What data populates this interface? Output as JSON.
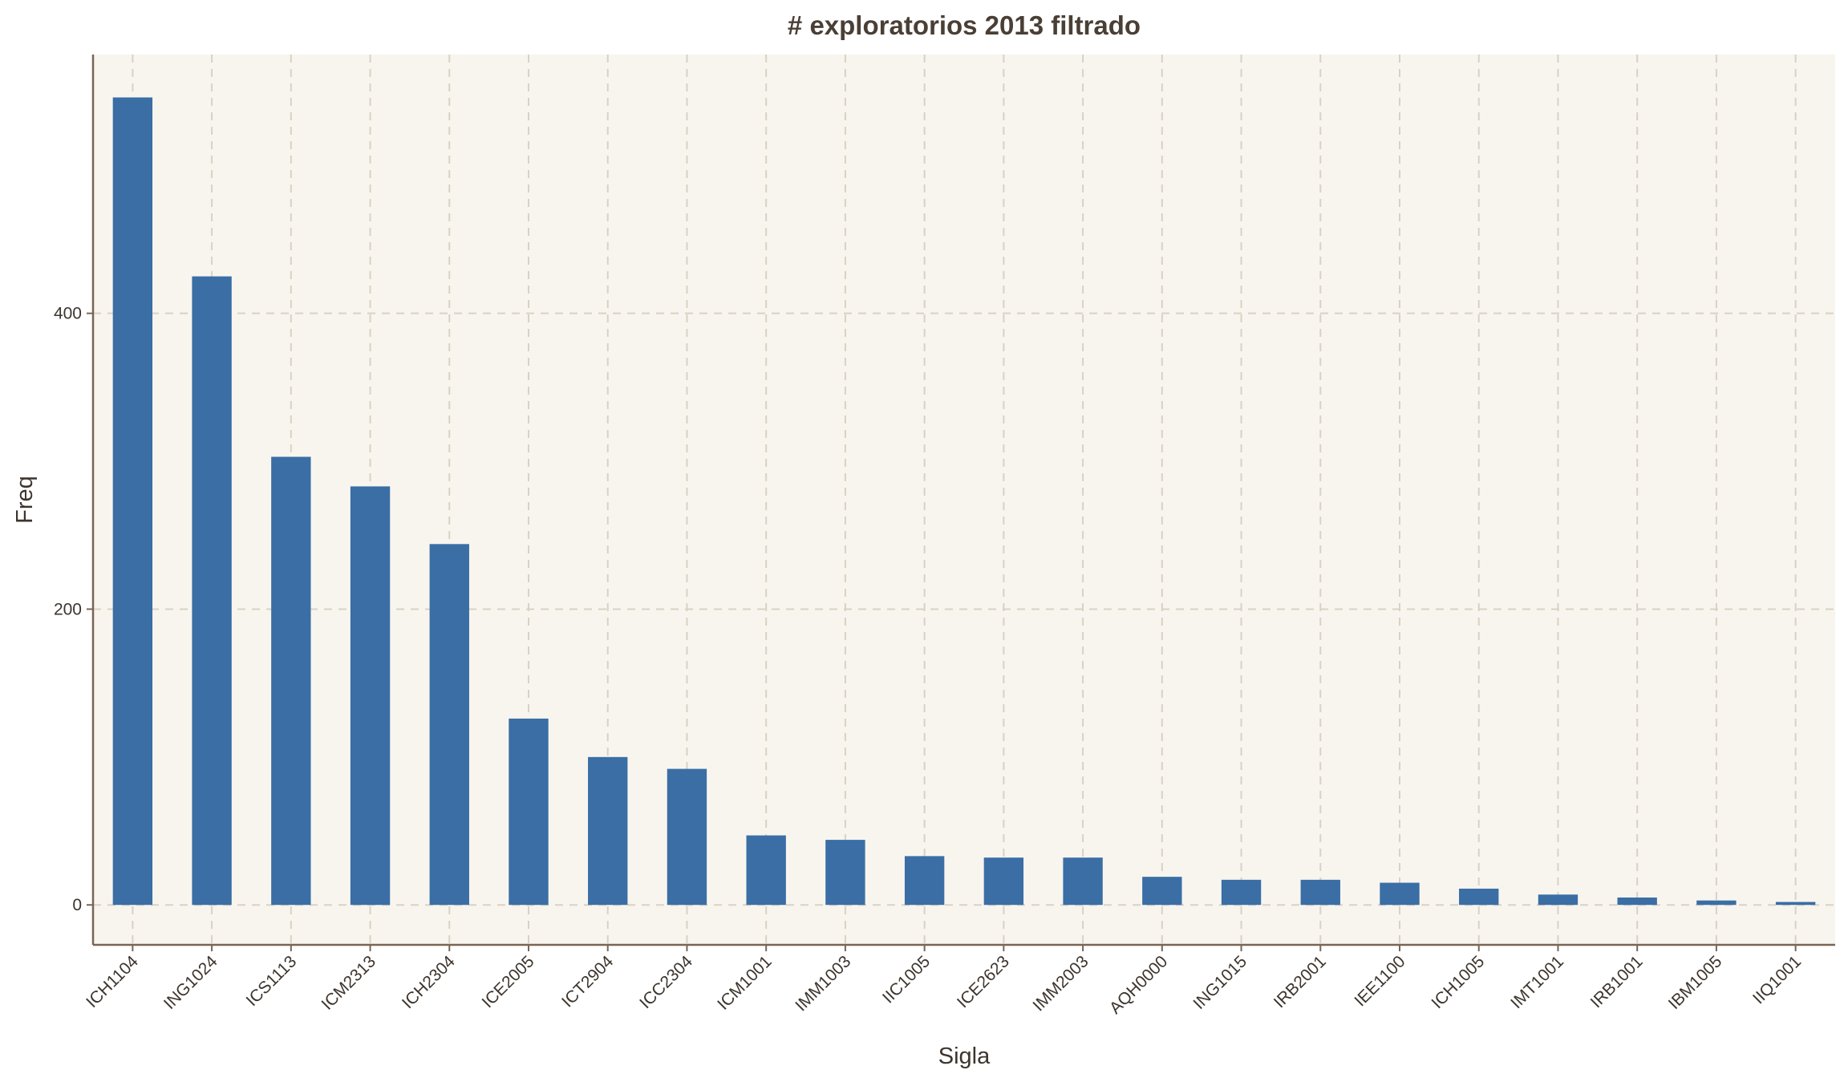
{
  "chart_data": {
    "type": "bar",
    "title": "# exploratorios 2013 filtrado",
    "xlabel": "Sigla",
    "ylabel": "Freq",
    "categories": [
      "ICH1104",
      "ING1024",
      "ICS1113",
      "ICM2313",
      "ICH2304",
      "ICE2005",
      "ICT2904",
      "ICC2304",
      "ICM1001",
      "IMM1003",
      "IIC1005",
      "ICE2623",
      "IMM2003",
      "AQH0000",
      "ING1015",
      "IRB2001",
      "IEE1100",
      "ICH1005",
      "IMT1001",
      "IRB1001",
      "IBM1005",
      "IIQ1001"
    ],
    "values": [
      546,
      425,
      303,
      283,
      244,
      126,
      100,
      92,
      47,
      44,
      33,
      32,
      32,
      19,
      17,
      17,
      15,
      11,
      7,
      5,
      3,
      2
    ],
    "yticks": [
      0,
      200,
      400
    ],
    "ylim": [
      -27,
      575
    ],
    "grid": true,
    "colors": {
      "bar": "#3a6ea5",
      "plot_background": "#f8f5ef",
      "grid": "#d9d2c3",
      "axis": "#7a6555",
      "text": "#3d352d",
      "title": "#4a3f35"
    }
  }
}
